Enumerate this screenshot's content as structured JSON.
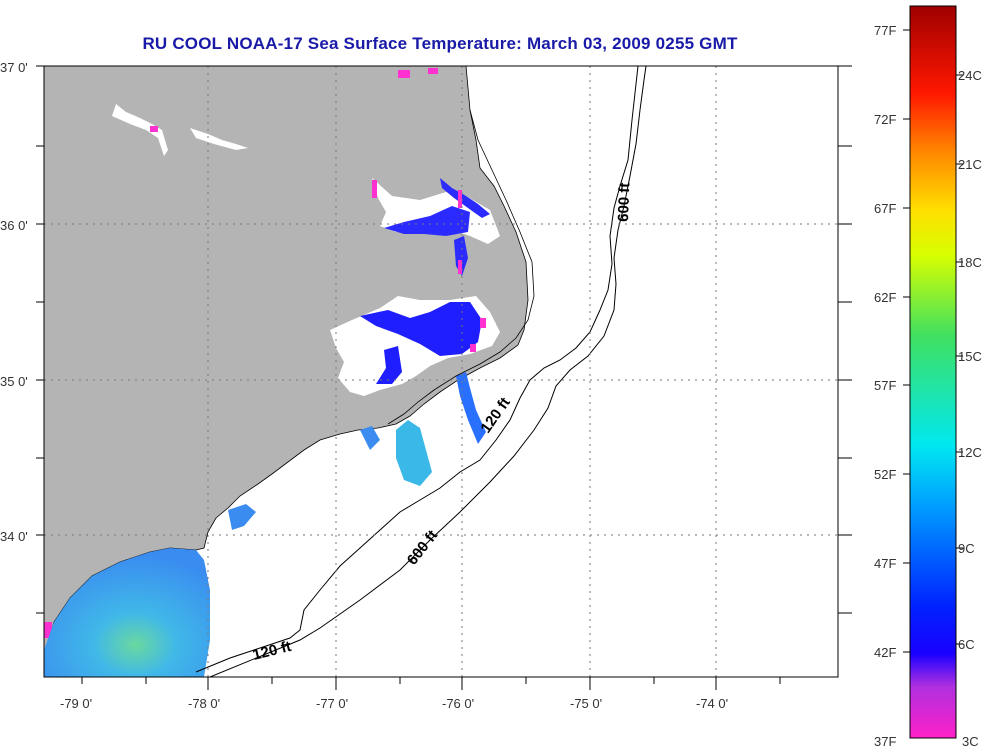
{
  "title": "RU COOL  NOAA-17  Sea Surface Temperature:  March 03, 2009 0255 GMT",
  "map": {
    "lat_labels": [
      "37 0'",
      "36 0'",
      "35 0'",
      "34 0'"
    ],
    "lon_labels": [
      "-79 0'",
      "-78 0'",
      "-77 0'",
      "-76 0'",
      "-75 0'",
      "-74 0'"
    ],
    "contour_labels": [
      "600 ft",
      "120 ft",
      "600 ft",
      "120 ft"
    ],
    "colors": {
      "land": "#b4b4b4",
      "ocean": "#ffffff",
      "grid": "#777777"
    }
  },
  "colorbar": {
    "fahrenheit": [
      "77F",
      "72F",
      "67F",
      "62F",
      "57F",
      "52F",
      "47F",
      "42F",
      "37F"
    ],
    "celsius": [
      "24C",
      "21C",
      "18C",
      "15C",
      "12C",
      "9C",
      "6C",
      "3C"
    ]
  }
}
